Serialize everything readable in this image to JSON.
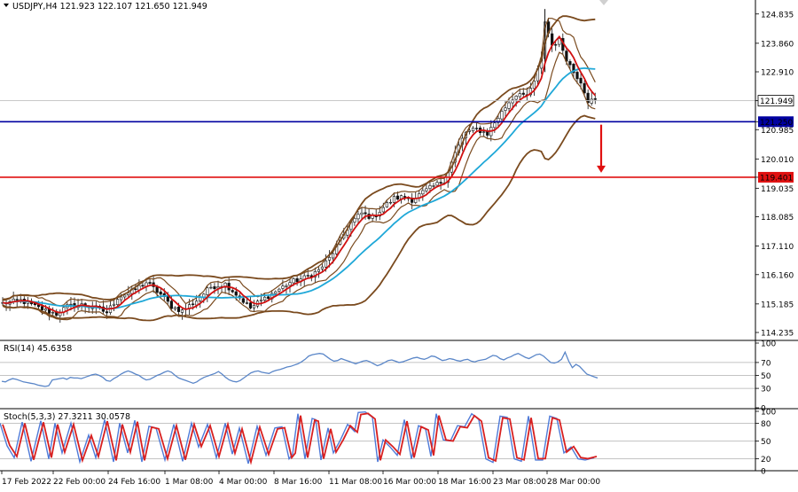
{
  "chart_data": [
    {
      "type": "candlestick",
      "title": "USDJPY,H4",
      "ohlc_readout": [
        "121.923",
        "122.107",
        "121.650",
        "121.949"
      ],
      "ylim": [
        114.0,
        125.3
      ],
      "y_ticks": [
        "124.835",
        "123.860",
        "122.910",
        "121.949",
        "121.250",
        "120.985",
        "120.010",
        "119.401",
        "119.035",
        "118.085",
        "117.110",
        "116.160",
        "115.185",
        "114.235"
      ],
      "current_price": {
        "label": "121.949",
        "value": 121.949
      },
      "levels": [
        {
          "label": "121.250",
          "value": 121.25,
          "color": "#0000a0"
        },
        {
          "label": "119.401",
          "value": 119.401,
          "color": "#e01010"
        }
      ],
      "arrow": {
        "from": 121.15,
        "to": 119.55,
        "color": "#e01010"
      },
      "x_ticks": [
        "17 Feb 2022",
        "22 Feb 00:00",
        "24 Feb 16:00",
        "1 Mar 08:00",
        "4 Mar 00:00",
        "8 Mar 16:00",
        "11 Mar 08:00",
        "16 Mar 00:00",
        "18 Mar 16:00",
        "23 Mar 08:00",
        "28 Mar 00:00"
      ],
      "close_anchors": [
        [
          0,
          115.2
        ],
        [
          5,
          115.3
        ],
        [
          10,
          115.05
        ],
        [
          15,
          114.85
        ],
        [
          18,
          115.1
        ],
        [
          22,
          115.15
        ],
        [
          26,
          115.05
        ],
        [
          29,
          114.9
        ],
        [
          32,
          115.4
        ],
        [
          36,
          115.6
        ],
        [
          40,
          115.9
        ],
        [
          44,
          115.5
        ],
        [
          47,
          115.1
        ],
        [
          50,
          114.95
        ],
        [
          54,
          115.3
        ],
        [
          58,
          115.75
        ],
        [
          62,
          115.85
        ],
        [
          66,
          115.4
        ],
        [
          69,
          115.05
        ],
        [
          72,
          115.3
        ],
        [
          76,
          115.6
        ],
        [
          80,
          115.9
        ],
        [
          84,
          116.05
        ],
        [
          88,
          116.3
        ],
        [
          91,
          116.7
        ],
        [
          94,
          117.3
        ],
        [
          97,
          117.9
        ],
        [
          100,
          118.2
        ],
        [
          103,
          118.05
        ],
        [
          106,
          118.4
        ],
        [
          109,
          118.7
        ],
        [
          112,
          118.75
        ],
        [
          114,
          118.65
        ],
        [
          117,
          118.9
        ],
        [
          120,
          119.1
        ],
        [
          123,
          119.3
        ],
        [
          126,
          120.2
        ],
        [
          129,
          120.9
        ],
        [
          132,
          121.0
        ],
        [
          135,
          120.85
        ],
        [
          138,
          121.4
        ],
        [
          141,
          121.9
        ],
        [
          144,
          122.25
        ],
        [
          146,
          122.05
        ],
        [
          148,
          122.6
        ],
        [
          150,
          123.3
        ],
        [
          151,
          124.6
        ],
        [
          153,
          123.8
        ],
        [
          155,
          123.95
        ],
        [
          157,
          123.35
        ],
        [
          159,
          122.9
        ],
        [
          161,
          122.6
        ],
        [
          163,
          121.95
        ],
        [
          165,
          121.95
        ]
      ],
      "series": [
        {
          "name": "",
          "color": "#1fa8d8"
        },
        {
          "name": "",
          "color": "#d01010"
        },
        {
          "name": "",
          "color": "#7a4a1e"
        }
      ]
    },
    {
      "type": "line",
      "title": "RSI(14) 45.6358",
      "ylim": [
        0,
        100
      ],
      "y_ticks": [
        "100",
        "70",
        "50",
        "30",
        "0"
      ],
      "levels": [
        70,
        50,
        30
      ],
      "values": [
        41,
        40,
        43,
        45,
        44,
        42,
        40,
        39,
        38,
        37,
        35,
        34,
        33,
        34,
        43,
        44,
        45,
        46,
        44,
        47,
        46,
        46,
        45,
        47,
        49,
        51,
        52,
        50,
        47,
        42,
        41,
        45,
        48,
        52,
        55,
        57,
        55,
        52,
        50,
        46,
        43,
        44,
        47,
        50,
        52,
        55,
        57,
        55,
        50,
        46,
        44,
        42,
        40,
        38,
        40,
        44,
        47,
        49,
        51,
        53,
        56,
        52,
        47,
        43,
        41,
        40,
        42,
        46,
        50,
        54,
        56,
        57,
        55,
        54,
        53,
        56,
        58,
        59,
        61,
        63,
        64,
        66,
        68,
        71,
        75,
        80,
        82,
        83,
        84,
        83,
        79,
        75,
        72,
        73,
        76,
        74,
        72,
        70,
        68,
        70,
        72,
        73,
        71,
        68,
        65,
        67,
        70,
        73,
        74,
        72,
        70,
        71,
        73,
        75,
        77,
        78,
        76,
        75,
        77,
        80,
        79,
        76,
        73,
        74,
        76,
        75,
        73,
        72,
        74,
        75,
        72,
        71,
        73,
        74,
        75,
        78,
        81,
        80,
        76,
        74,
        77,
        79,
        82,
        84,
        81,
        78,
        76,
        79,
        82,
        83,
        80,
        75,
        70,
        69,
        71,
        75,
        86,
        72,
        62,
        67,
        64,
        58,
        52,
        50,
        48,
        46
      ],
      "series": [
        {
          "name": "",
          "color": "#5a86c8"
        }
      ]
    },
    {
      "type": "line",
      "title": "Stoch(5,3,3) 27.3211 30.0578",
      "ylim": [
        0,
        100
      ],
      "y_ticks": [
        "100",
        "80",
        "50",
        "20",
        "0"
      ],
      "levels": [
        80,
        50,
        20
      ],
      "cycle_peaks": [
        [
          0,
          80
        ],
        [
          8,
          42
        ],
        [
          16,
          22
        ],
        [
          25,
          82
        ],
        [
          35,
          16
        ],
        [
          46,
          84
        ],
        [
          55,
          20
        ],
        [
          62,
          80
        ],
        [
          70,
          30
        ],
        [
          80,
          80
        ],
        [
          90,
          15
        ],
        [
          100,
          60
        ],
        [
          108,
          22
        ],
        [
          118,
          86
        ],
        [
          128,
          15
        ],
        [
          135,
          80
        ],
        [
          144,
          30
        ],
        [
          152,
          85
        ],
        [
          160,
          15
        ],
        [
          168,
          75
        ],
        [
          176,
          72
        ],
        [
          186,
          18
        ],
        [
          196,
          78
        ],
        [
          206,
          16
        ],
        [
          216,
          80
        ],
        [
          224,
          40
        ],
        [
          234,
          78
        ],
        [
          244,
          22
        ],
        [
          254,
          80
        ],
        [
          262,
          28
        ],
        [
          270,
          72
        ],
        [
          280,
          12
        ],
        [
          290,
          75
        ],
        [
          300,
          26
        ],
        [
          310,
          72
        ],
        [
          318,
          74
        ],
        [
          326,
          20
        ],
        [
          330,
          28
        ],
        [
          336,
          96
        ],
        [
          344,
          20
        ],
        [
          352,
          88
        ],
        [
          356,
          86
        ],
        [
          362,
          18
        ],
        [
          370,
          72
        ],
        [
          376,
          30
        ],
        [
          384,
          52
        ],
        [
          392,
          78
        ],
        [
          400,
          66
        ],
        [
          404,
          98
        ],
        [
          412,
          100
        ],
        [
          420,
          90
        ],
        [
          426,
          15
        ],
        [
          432,
          52
        ],
        [
          440,
          40
        ],
        [
          448,
          26
        ],
        [
          456,
          86
        ],
        [
          464,
          20
        ],
        [
          472,
          76
        ],
        [
          480,
          70
        ],
        [
          486,
          24
        ],
        [
          492,
          96
        ],
        [
          500,
          52
        ],
        [
          508,
          50
        ],
        [
          516,
          76
        ],
        [
          524,
          74
        ],
        [
          532,
          96
        ],
        [
          540,
          86
        ],
        [
          548,
          20
        ],
        [
          556,
          14
        ],
        [
          564,
          92
        ],
        [
          572,
          90
        ],
        [
          580,
          20
        ],
        [
          588,
          16
        ],
        [
          596,
          92
        ],
        [
          604,
          18
        ],
        [
          612,
          18
        ],
        [
          620,
          92
        ],
        [
          628,
          88
        ],
        [
          636,
          30
        ],
        [
          644,
          40
        ],
        [
          652,
          20
        ],
        [
          660,
          18
        ],
        [
          670,
          22
        ]
      ],
      "series": [
        {
          "name": "",
          "color": "#4f7ad8"
        },
        {
          "name": "",
          "color": "#d82020"
        }
      ]
    }
  ]
}
